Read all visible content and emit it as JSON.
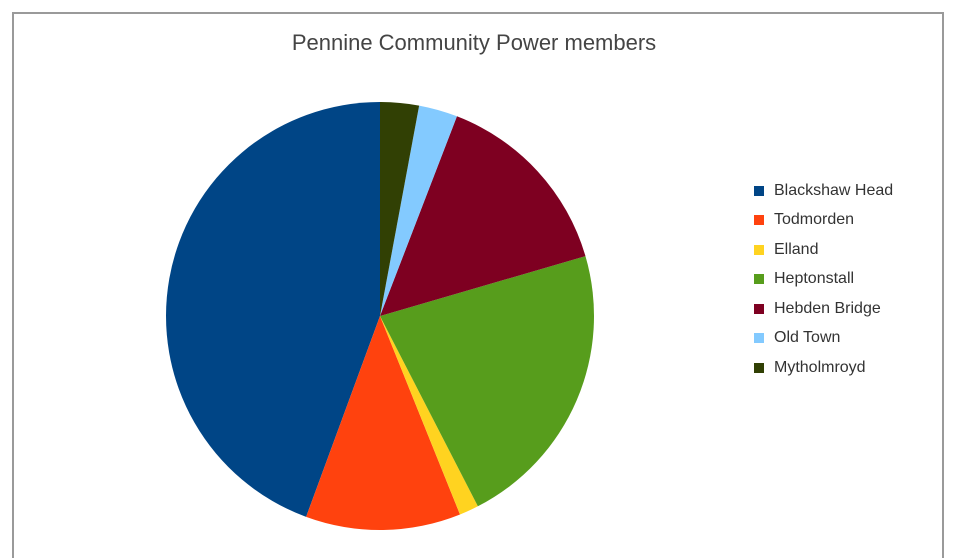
{
  "chart_data": {
    "type": "pie",
    "title": "Pennine Community Power members",
    "legend_position": "right",
    "slices": [
      {
        "label": "Blackshaw Head",
        "value": 45.5,
        "color": "#004586"
      },
      {
        "label": "Todmorden",
        "value": 12.0,
        "color": "#ff420e"
      },
      {
        "label": "Elland",
        "value": 1.5,
        "color": "#ffd320"
      },
      {
        "label": "Heptonstall",
        "value": 22.5,
        "color": "#579d1c"
      },
      {
        "label": "Hebden Bridge",
        "value": 15.0,
        "color": "#7e0021"
      },
      {
        "label": "Old Town",
        "value": 3.0,
        "color": "#83caff"
      },
      {
        "label": "Mytholmroyd",
        "value": 3.0,
        "color": "#314004"
      }
    ]
  }
}
